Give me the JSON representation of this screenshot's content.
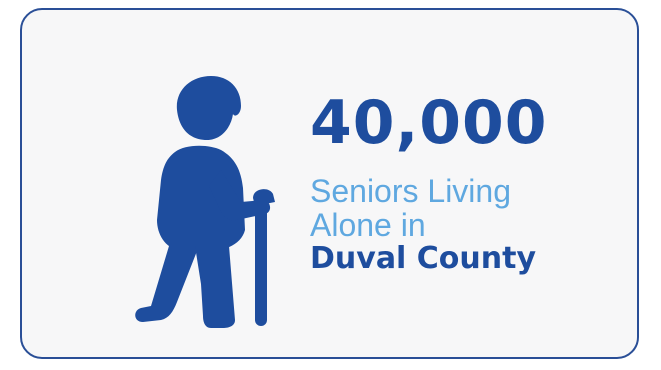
{
  "stat": {
    "number": "40,000",
    "line1": "Seniors Living",
    "line2": "Alone in",
    "place": "Duval County"
  },
  "colors": {
    "primary": "#1e4d9e",
    "accent": "#5fa8e0",
    "border": "#2a4f97",
    "card_bg": "#f7f7f8"
  },
  "icon": {
    "name": "elderly-person-with-cane-icon"
  }
}
